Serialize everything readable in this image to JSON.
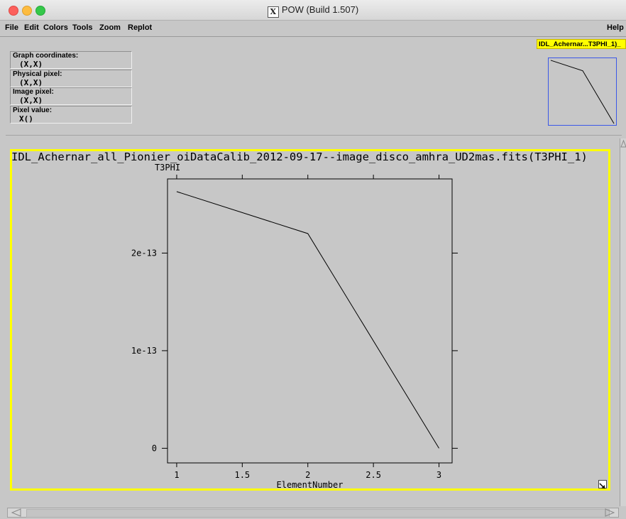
{
  "window": {
    "title": "POW (Build 1.507)",
    "x11_glyph": "X"
  },
  "menu": {
    "items": [
      "File",
      "Edit",
      "Colors",
      "Tools",
      "Zoom",
      "Replot"
    ],
    "help": "Help"
  },
  "graph_tag": "IDL_Achernar...T3PHI_1)_",
  "info": {
    "graph_coordinates_label": "Graph coordinates:",
    "graph_coordinates_value": "(X,X)",
    "physical_pixel_label": "Physical pixel:",
    "physical_pixel_value": "(X,X)",
    "image_pixel_label": "Image pixel:",
    "image_pixel_value": "(X,X)",
    "pixel_value_label": "Pixel value:",
    "pixel_value_value": "X()"
  },
  "colors": {
    "highlight": "#ffff00",
    "thumb_border": "#3a57e8",
    "background": "#c7c7c7"
  },
  "chart_data": {
    "type": "line",
    "title": "IDL_Achernar_all_Pionier_oiDataCalib_2012-09-17--image_disco_amhra_UD2mas.fits(T3PHI_1)",
    "xlabel": "ElementNumber",
    "ylabel": "T3PHI",
    "x": [
      1,
      2,
      3
    ],
    "series": [
      {
        "values": [
          2.63e-13,
          2.2e-13,
          0
        ]
      }
    ],
    "xlim": [
      0.93,
      3.1
    ],
    "ylim": [
      -1.5e-14,
      2.76e-13
    ],
    "xticks": [
      1,
      1.5,
      2,
      2.5,
      3
    ],
    "xtick_labels": [
      "1",
      "1.5",
      "2",
      "2.5",
      "3"
    ],
    "yticks": [
      0,
      1e-13,
      2e-13
    ],
    "ytick_labels": [
      "0",
      "1e-13",
      "2e-13"
    ],
    "grid": false
  }
}
